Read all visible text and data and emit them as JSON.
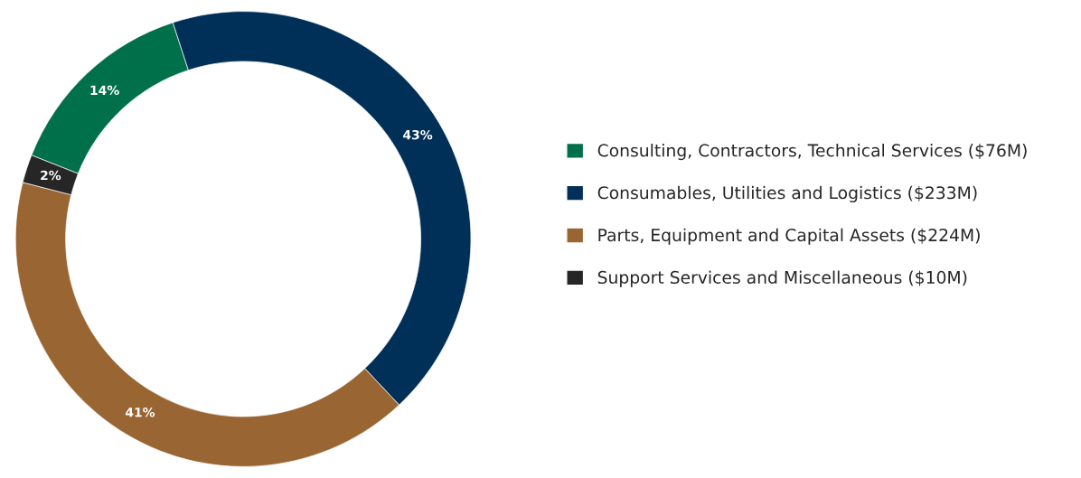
{
  "chart_data": {
    "type": "donut",
    "categories": [
      "Consulting, Contractors, Technical Services ($76M)",
      "Consumables, Utilities and Logistics ($233M)",
      "Parts, Equipment and Capital Assets ($224M)",
      "Support Services and Miscellaneous ($10M)"
    ],
    "values": [
      14,
      43,
      41,
      2
    ],
    "colors": [
      "#00704a",
      "#003057",
      "#996633",
      "#262626"
    ],
    "value_labels": [
      "14%",
      "43%",
      "41%",
      "2%"
    ],
    "legend": "right"
  }
}
